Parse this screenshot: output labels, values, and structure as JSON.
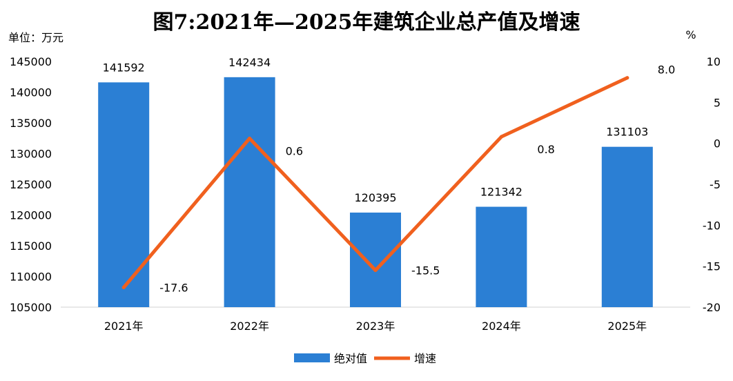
{
  "chart_data": {
    "type": "bar",
    "title": "图7:2021年—2025年建筑企业总产值及增速",
    "left_unit_label": "单位：万元",
    "right_unit_label": "%",
    "categories": [
      "2021年",
      "2022年",
      "2023年",
      "2024年",
      "2025年"
    ],
    "series": [
      {
        "name": "绝对值",
        "type": "bar",
        "axis": "left",
        "color": "#2B7FD4",
        "values": [
          141592,
          142434,
          120395,
          121342,
          131103
        ],
        "labels": [
          "141592",
          "142434",
          "120395",
          "121342",
          "131103"
        ]
      },
      {
        "name": "增速",
        "type": "line",
        "axis": "right",
        "color": "#F0601E",
        "values": [
          -17.6,
          0.6,
          -15.5,
          0.8,
          8.0
        ],
        "labels": [
          "-17.6",
          "0.6",
          "-15.5",
          "0.8",
          "8.0"
        ]
      }
    ],
    "y_left": {
      "min": 105000,
      "max": 145000,
      "step": 5000,
      "tick_labels": [
        "105000",
        "110000",
        "115000",
        "120000",
        "125000",
        "130000",
        "135000",
        "140000",
        "145000"
      ]
    },
    "y_right": {
      "min": -20,
      "max": 10,
      "step": 5,
      "tick_labels": [
        "-20",
        "-15",
        "-10",
        "-5",
        "0",
        "5",
        "10"
      ]
    },
    "grid": false,
    "legend_position": "bottom"
  }
}
